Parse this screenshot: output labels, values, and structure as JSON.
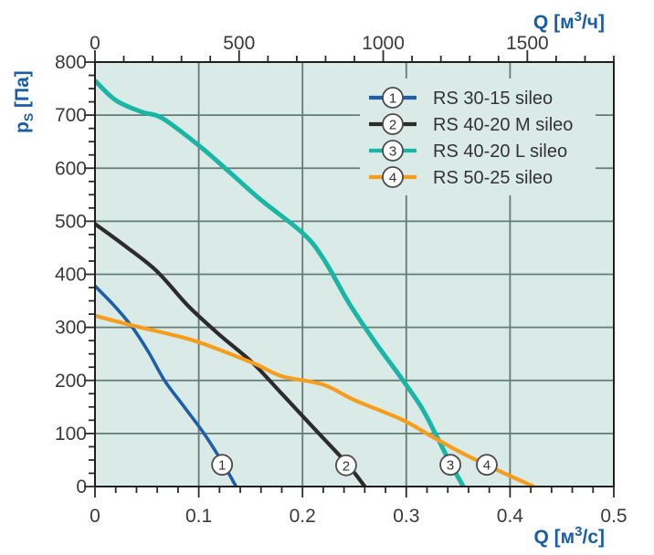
{
  "chart_data": {
    "type": "line",
    "background_color": "#daeae6",
    "grid_color": "#667a77",
    "axis_color": "#1f1f1f",
    "tick_color": "#2b2b2b",
    "tick_label_color": "#3a3a3a",
    "axis_title_color": "#1a5ca8",
    "legend_text_color": "#333333",
    "marker_circle_fill": "#ffffff",
    "marker_circle_stroke": "#4a4a4a",
    "y_axis": {
      "label": "ps [Па]",
      "label_parts": {
        "pre": "p",
        "sub": "S",
        "post": " [Па]"
      },
      "min": 0,
      "max": 800,
      "major_tick_values": [
        0,
        100,
        200,
        300,
        400,
        500,
        600,
        700,
        800
      ],
      "major_tick_labels": [
        "0",
        "100",
        "200",
        "300",
        "400",
        "500",
        "600",
        "700",
        "800"
      ],
      "minor_step": 25,
      "gridline_values": [
        100,
        200,
        300,
        400,
        500,
        600,
        700
      ]
    },
    "x_axis_bottom": {
      "label": "Q [м³/с]",
      "label_parts": {
        "pre": "Q [м",
        "sup": "3",
        "post": "/с]"
      },
      "min": 0,
      "max": 0.5,
      "major_tick_values": [
        0,
        0.1,
        0.2,
        0.3,
        0.4,
        0.5
      ],
      "major_tick_labels": [
        "0",
        "0.1",
        "0.2",
        "0.3",
        "0.4",
        "0.5"
      ],
      "minor_step": 0.02,
      "gridline_values": [
        0.1,
        0.2,
        0.3,
        0.4
      ]
    },
    "x_axis_top": {
      "label": "Q [м³/ч]",
      "label_parts": {
        "pre": "Q [м",
        "sup": "3",
        "post": "/ч]"
      },
      "min": 0,
      "max": 1800,
      "major_tick_values": [
        0,
        500,
        1000,
        1500
      ],
      "major_tick_labels": [
        "0",
        "500",
        "1000",
        "1500"
      ],
      "minor_step": 100
    },
    "series": [
      {
        "num": "1",
        "name": "RS 30-15 sileo",
        "color": "#1d5fa9",
        "width": 3.6,
        "marker_point": [
          0.1225,
          41
        ],
        "points": [
          [
            0,
            378
          ],
          [
            0.018,
            342
          ],
          [
            0.036,
            300
          ],
          [
            0.052,
            252
          ],
          [
            0.067,
            200
          ],
          [
            0.086,
            150
          ],
          [
            0.105,
            100
          ],
          [
            0.122,
            48
          ],
          [
            0.136,
            0
          ]
        ]
      },
      {
        "num": "2",
        "name": "RS 40-20 M sileo",
        "color": "#2b2b2b",
        "width": 4.2,
        "marker_point": [
          0.242,
          40
        ],
        "points": [
          [
            0,
            495
          ],
          [
            0.03,
            452
          ],
          [
            0.06,
            405
          ],
          [
            0.09,
            340
          ],
          [
            0.12,
            286
          ],
          [
            0.152,
            233
          ],
          [
            0.18,
            175
          ],
          [
            0.21,
            112
          ],
          [
            0.242,
            45
          ],
          [
            0.26,
            0
          ]
        ]
      },
      {
        "num": "3",
        "name": "RS 40-20 L sileo",
        "color": "#19b6a5",
        "width": 5,
        "marker_point": [
          0.3425,
          41
        ],
        "points": [
          [
            0,
            765
          ],
          [
            0.02,
            728
          ],
          [
            0.045,
            706
          ],
          [
            0.065,
            694
          ],
          [
            0.1,
            643
          ],
          [
            0.13,
            592
          ],
          [
            0.16,
            540
          ],
          [
            0.2,
            478
          ],
          [
            0.22,
            430
          ],
          [
            0.245,
            345
          ],
          [
            0.27,
            272
          ],
          [
            0.295,
            205
          ],
          [
            0.315,
            148
          ],
          [
            0.33,
            92
          ],
          [
            0.343,
            42
          ],
          [
            0.355,
            0
          ]
        ]
      },
      {
        "num": "4",
        "name": "RS 50-25 sileo",
        "color": "#f69e1c",
        "width": 4.2,
        "marker_point": [
          0.3776,
          41
        ],
        "points": [
          [
            0,
            322
          ],
          [
            0.035,
            304
          ],
          [
            0.07,
            288
          ],
          [
            0.1,
            272
          ],
          [
            0.152,
            233
          ],
          [
            0.18,
            208
          ],
          [
            0.22,
            192
          ],
          [
            0.25,
            163
          ],
          [
            0.296,
            126
          ],
          [
            0.324,
            95
          ],
          [
            0.35,
            67
          ],
          [
            0.377,
            41
          ],
          [
            0.4,
            20
          ],
          [
            0.423,
            0
          ]
        ]
      }
    ],
    "legend_position": "top-right"
  }
}
